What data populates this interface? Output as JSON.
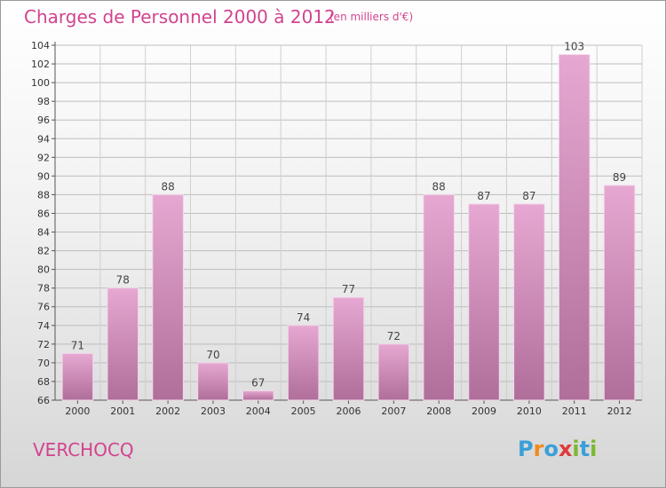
{
  "header": {
    "title": "Charges de Personnel 2000 à 2012",
    "subtitle": "(en milliers d'€)"
  },
  "footer": {
    "commune": "VERCHOCQ",
    "logo_text": "Proxiti"
  },
  "colors": {
    "accent": "#d2438f",
    "bar_light": "#e6a8d2",
    "bar_dark": "#b06e9a"
  },
  "chart_data": {
    "type": "bar",
    "categories": [
      "2000",
      "2001",
      "2002",
      "2003",
      "2004",
      "2005",
      "2006",
      "2007",
      "2008",
      "2009",
      "2010",
      "2011",
      "2012"
    ],
    "values": [
      71,
      78,
      88,
      70,
      67,
      74,
      77,
      72,
      88,
      87,
      87,
      103,
      89
    ],
    "ylim": [
      66,
      104
    ],
    "yticks": [
      66,
      68,
      70,
      72,
      74,
      76,
      78,
      80,
      82,
      84,
      86,
      88,
      90,
      92,
      94,
      96,
      98,
      100,
      102,
      104
    ],
    "grid": true
  }
}
